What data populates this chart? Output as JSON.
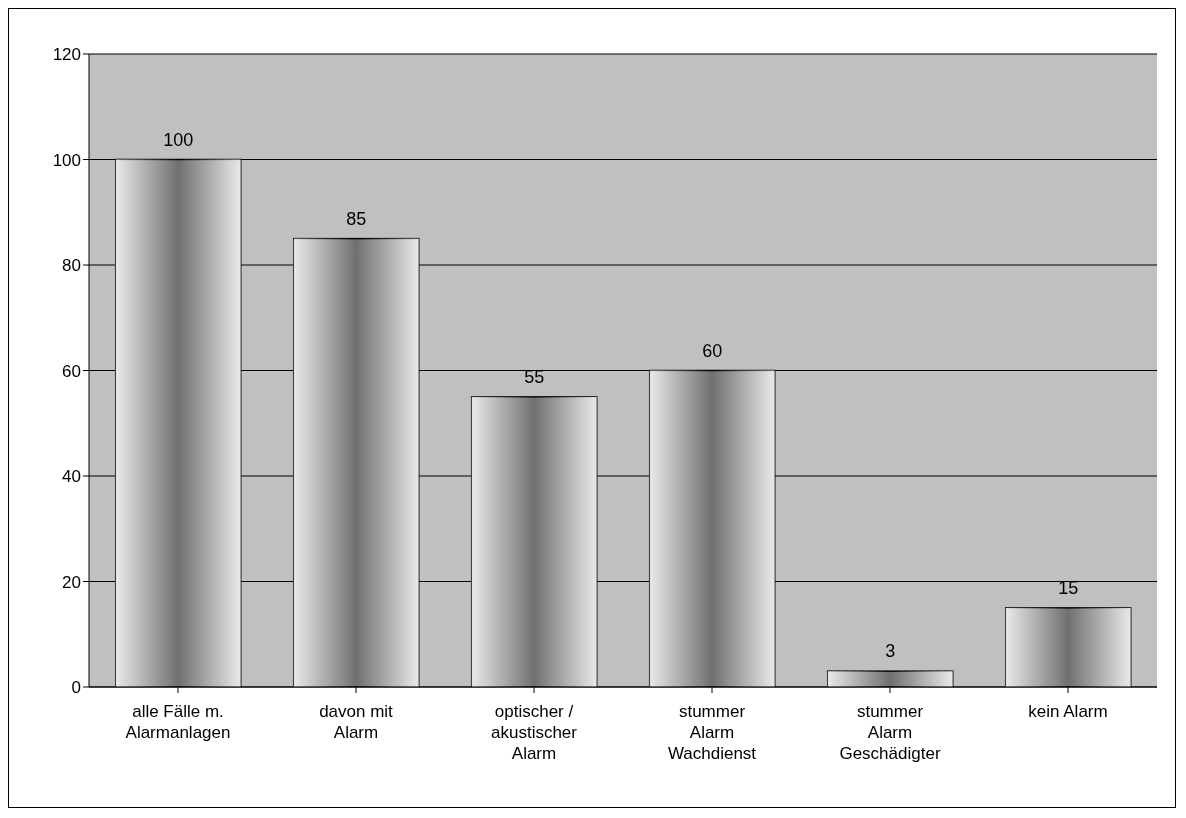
{
  "chart_data": {
    "type": "bar",
    "categories": [
      "alle Fälle m. Alarmanlagen",
      "davon mit Alarm",
      "optischer / akustischer Alarm",
      "stummer Alarm Wachdienst",
      "stummer Alarm Geschädigter",
      "kein Alarm"
    ],
    "values": [
      100,
      85,
      55,
      60,
      3,
      15
    ],
    "color": "#707070",
    "ylim": [
      0,
      120
    ],
    "yticks": [
      0,
      20,
      40,
      60,
      80,
      100,
      120
    ],
    "grid": "y",
    "data_labels": true
  }
}
